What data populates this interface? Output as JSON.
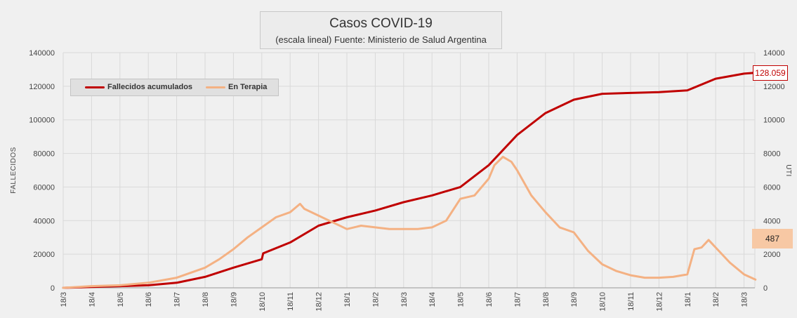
{
  "title": "Casos COVID-19",
  "subtitle": "(escala lineal) Fuente: Ministerio de Salud Argentina",
  "legend": {
    "item1": "Fallecidos acumulados",
    "item2": "En Terapia"
  },
  "callouts": {
    "fallecidos_last": "128.059",
    "terapia_last": "487"
  },
  "colors": {
    "fallecidos": "#c00000",
    "terapia": "#f4b183",
    "background": "#f0f0f0",
    "grid": "#d9d9d9"
  },
  "chart_data": {
    "type": "line",
    "xlabel": "",
    "ylabel": "FALLECIDOS",
    "y2label": "UTI",
    "ylim": [
      0,
      140000
    ],
    "y2lim": [
      0,
      14000
    ],
    "yticks": [
      "0",
      "20000",
      "40000",
      "60000",
      "80000",
      "100000",
      "120000",
      "140000"
    ],
    "y2ticks": [
      "0",
      "2000",
      "4000",
      "6000",
      "8000",
      "10000",
      "12000",
      "14000"
    ],
    "categories": [
      "18/3",
      "18/4",
      "18/5",
      "18/6",
      "18/7",
      "18/8",
      "18/9",
      "18/10",
      "18/11",
      "18/12",
      "18/1",
      "18/2",
      "18/3",
      "18/4",
      "18/5",
      "18/6",
      "18/7",
      "18/8",
      "18/9",
      "18/10",
      "18/11",
      "18/12",
      "18/1",
      "18/2",
      "18/3"
    ],
    "series": [
      {
        "name": "Fallecidos acumulados",
        "axis": "left",
        "x": [
          0,
          1,
          2,
          3,
          4,
          5,
          6,
          7,
          7.05,
          8,
          9,
          10,
          11,
          12,
          13,
          14,
          15,
          16,
          17,
          18,
          19,
          20,
          21,
          22,
          23,
          24,
          24.4
        ],
        "values": [
          0,
          500,
          1000,
          1500,
          3000,
          6500,
          12000,
          17000,
          20500,
          27000,
          37000,
          42000,
          46000,
          51000,
          55000,
          60000,
          73000,
          91000,
          104000,
          112000,
          115500,
          116000,
          116500,
          117500,
          124500,
          127500,
          128059
        ]
      },
      {
        "name": "En Terapia",
        "axis": "right",
        "x": [
          0,
          1,
          2,
          3,
          4,
          5,
          5.5,
          6,
          6.5,
          7,
          7.5,
          8,
          8.35,
          8.5,
          9,
          9.5,
          10,
          10.5,
          11,
          11.5,
          12,
          12.5,
          13,
          13.5,
          14,
          14.5,
          15,
          15.2,
          15.5,
          15.8,
          16,
          16.5,
          17,
          17.5,
          18,
          18.5,
          19,
          19.5,
          20,
          20.5,
          21,
          21.5,
          22,
          22.25,
          22.5,
          22.75,
          23,
          23.5,
          24,
          24.4
        ],
        "values": [
          0,
          100,
          150,
          300,
          600,
          1200,
          1700,
          2300,
          3000,
          3600,
          4200,
          4500,
          5000,
          4700,
          4300,
          3900,
          3500,
          3700,
          3600,
          3500,
          3500,
          3500,
          3600,
          4000,
          5300,
          5500,
          6500,
          7300,
          7800,
          7500,
          7000,
          5500,
          4500,
          3600,
          3300,
          2200,
          1400,
          1000,
          750,
          600,
          600,
          650,
          800,
          2300,
          2400,
          2850,
          2400,
          1500,
          800,
          487
        ]
      }
    ]
  }
}
